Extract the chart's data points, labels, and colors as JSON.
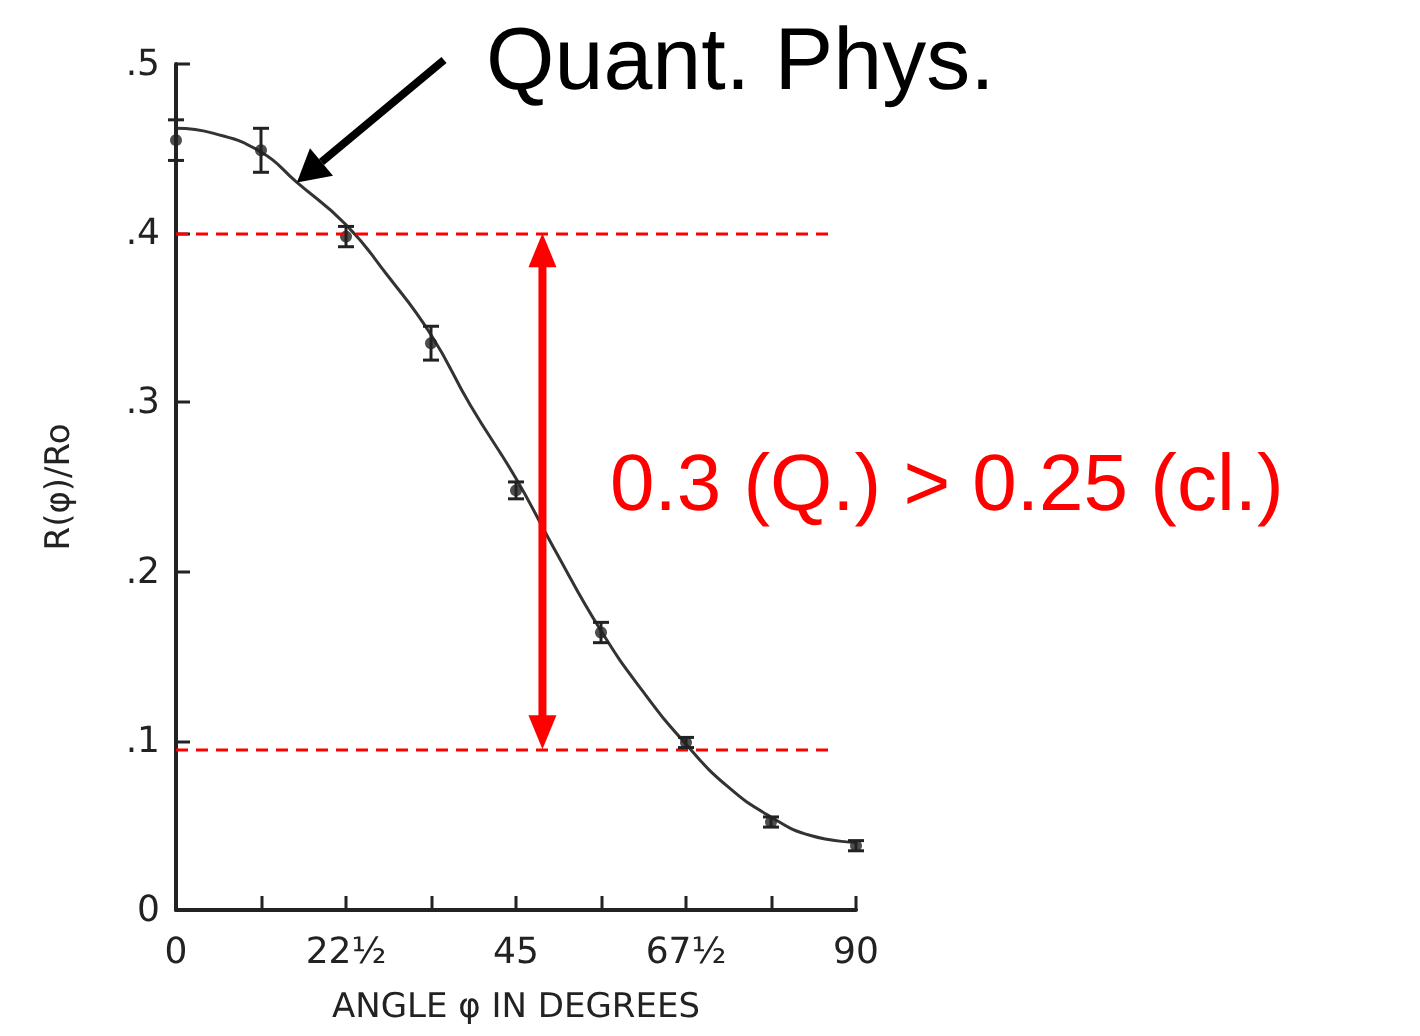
{
  "chart_data": {
    "type": "scatter",
    "xlabel": "ANGLE φ IN DEGREES",
    "ylabel": "R(φ)/Ro",
    "xlim": [
      0,
      90
    ],
    "xticks": [
      0,
      {
        "value": 11.25,
        "label": null
      },
      {
        "value": 22.5,
        "label": "22½"
      },
      {
        "value": 33.75,
        "label": null
      },
      45,
      {
        "value": 56.25,
        "label": null
      },
      {
        "value": 67.5,
        "label": "67½"
      },
      {
        "value": 78.75,
        "label": null
      },
      90
    ],
    "ylim": [
      0,
      0.5
    ],
    "yticks": [
      {
        "value": 0,
        "label": "0"
      },
      {
        "value": 0.1,
        "label": ".1"
      },
      {
        "value": 0.2,
        "label": ".2"
      },
      {
        "value": 0.3,
        "label": ".3"
      },
      {
        "value": 0.4,
        "label": ".4"
      },
      {
        "value": 0.5,
        "label": ".5"
      }
    ],
    "grid": false,
    "series": [
      {
        "color": "#222222",
        "marker": "circle",
        "x": [
          0,
          11.25,
          22.5,
          33.75,
          45,
          56.25,
          67.5,
          78.75,
          90
        ],
        "values": [
          0.455,
          0.449,
          0.398,
          0.335,
          0.248,
          0.164,
          0.099,
          0.052,
          0.038
        ],
        "errors": [
          0.012,
          0.013,
          0.006,
          0.01,
          0.005,
          0.006,
          0.003,
          0.003,
          0.003
        ]
      },
      {
        "type": "line",
        "color": "#333333",
        "marker": "none",
        "line_style": "solid",
        "x": [
          0,
          5,
          11.25,
          16,
          22.5,
          28,
          33.75,
          39,
          45,
          50,
          56.25,
          62,
          67.5,
          73,
          78.75,
          84,
          90
        ],
        "values": [
          0.462,
          0.459,
          0.448,
          0.43,
          0.405,
          0.375,
          0.34,
          0.298,
          0.255,
          0.214,
          0.165,
          0.128,
          0.098,
          0.073,
          0.055,
          0.044,
          0.04
        ]
      }
    ],
    "ref_lines": [
      {
        "axis": "y",
        "value": 0.4,
        "color": "#ff0000",
        "line_style": "dashed"
      },
      {
        "axis": "y",
        "value": 0.095,
        "color": "#ff0000",
        "line_style": "dashed"
      }
    ],
    "annotations": [
      {
        "text": "Quant. Phys.",
        "x": 16,
        "y": 0.43
      },
      "0.3 (Q.) > 0.25 (cl.)"
    ]
  }
}
